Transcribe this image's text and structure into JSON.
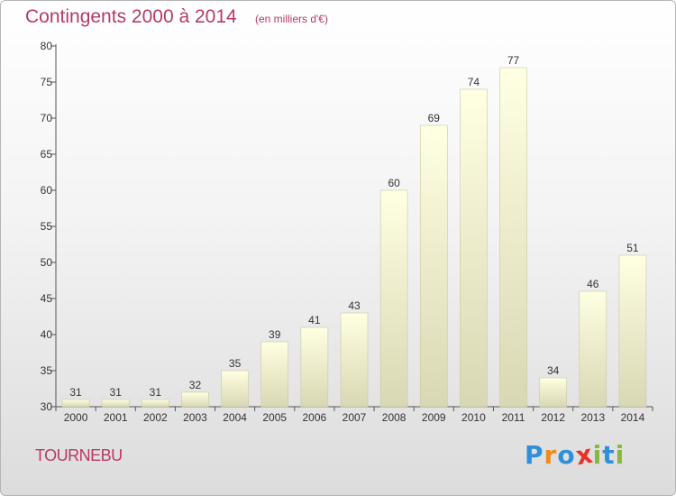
{
  "colors": {
    "title": "#b83a63",
    "bar_top": "#ffffe2",
    "bar_bottom": "#d8d8b4",
    "axis": "#555555",
    "grid": "#dddddd"
  },
  "header": {
    "title": "Contingents 2000 à 2014",
    "subtitle": "(en milliers d'€)"
  },
  "footer": {
    "place": "TOURNEBU",
    "logo": {
      "text": "Proxiti",
      "letters": [
        {
          "ch": "P",
          "color": "#2f8fd8"
        },
        {
          "ch": "r",
          "color": "#f08a1c"
        },
        {
          "ch": "o",
          "color": "#2f8fd8"
        },
        {
          "ch": "x",
          "color": "#e8312a"
        },
        {
          "ch": "i",
          "color": "#83b93d"
        },
        {
          "ch": "t",
          "color": "#2f8fd8"
        },
        {
          "ch": "i",
          "color": "#83b93d"
        }
      ]
    }
  },
  "chart_data": {
    "type": "bar",
    "title": "Contingents 2000 à 2014",
    "subtitle": "(en milliers d'€)",
    "categories": [
      "2000",
      "2001",
      "2002",
      "2003",
      "2004",
      "2005",
      "2006",
      "2007",
      "2008",
      "2009",
      "2010",
      "2011",
      "2012",
      "2013",
      "2014"
    ],
    "values": [
      31,
      31,
      31,
      32,
      35,
      39,
      41,
      43,
      60,
      69,
      74,
      77,
      34,
      46,
      51
    ],
    "ylim": [
      30,
      80
    ],
    "yticks": [
      30,
      35,
      40,
      45,
      50,
      55,
      60,
      65,
      70,
      75,
      80
    ],
    "grid": false,
    "data_labels": true
  }
}
